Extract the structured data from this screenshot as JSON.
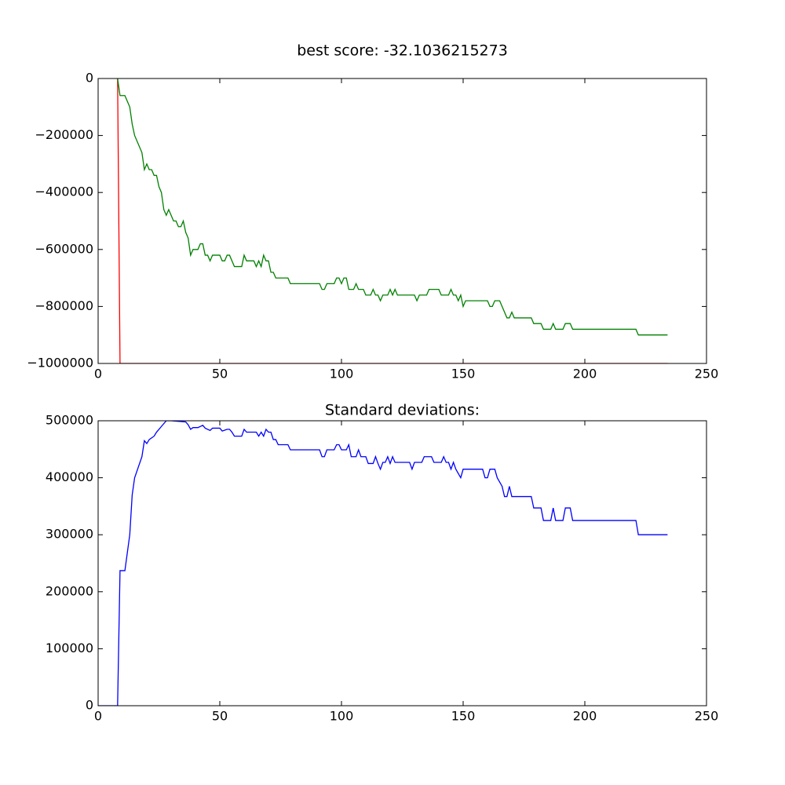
{
  "chart_data": [
    {
      "type": "line",
      "title": "best score: -32.1036215273",
      "xlim": [
        0,
        250
      ],
      "xticks": [
        0,
        50,
        100,
        150,
        200,
        250
      ],
      "ylim": [
        -1000000,
        0
      ],
      "yticks": [
        {
          "value": -1000000,
          "label": "−1000000"
        },
        {
          "value": -800000,
          "label": "−800000"
        },
        {
          "value": -600000,
          "label": "−600000"
        },
        {
          "value": -400000,
          "label": "−400000"
        },
        {
          "value": -200000,
          "label": "−200000"
        },
        0
      ],
      "series": [
        {
          "color": "#ff0000",
          "x": [
            8,
            9,
            234
          ],
          "values": [
            0,
            -1000000,
            -1000000
          ]
        },
        {
          "color": "#008000",
          "x": [
            8,
            9,
            11,
            13,
            14,
            15,
            18,
            19,
            20,
            21,
            22,
            23,
            24,
            25,
            26,
            27,
            28,
            29,
            30,
            31,
            32,
            33,
            34,
            35,
            36,
            37,
            38,
            39,
            41,
            42,
            43,
            44,
            45,
            46,
            47,
            50,
            51,
            52,
            53,
            54,
            56,
            59,
            60,
            61,
            64,
            65,
            66,
            67,
            68,
            69,
            70,
            71,
            72,
            73,
            78,
            79,
            91,
            92,
            93,
            94,
            97,
            98,
            99,
            100,
            101,
            102,
            103,
            105,
            106,
            107,
            109,
            110,
            112,
            113,
            114,
            115,
            116,
            117,
            119,
            120,
            121,
            122,
            123,
            130,
            131,
            132,
            135,
            136,
            140,
            141,
            144,
            145,
            146,
            147,
            148,
            149,
            150,
            151,
            160,
            161,
            162,
            163,
            165,
            166,
            168,
            169,
            170,
            171,
            178,
            179,
            182,
            183,
            186,
            187,
            188,
            191,
            192,
            194,
            195,
            221,
            222,
            234
          ],
          "values": [
            0,
            -60000,
            -60000,
            -100000,
            -160000,
            -200000,
            -260000,
            -320000,
            -300000,
            -320000,
            -320000,
            -340000,
            -340000,
            -380000,
            -400000,
            -460000,
            -480000,
            -460000,
            -480000,
            -500000,
            -500000,
            -520000,
            -520000,
            -500000,
            -540000,
            -560000,
            -620000,
            -600000,
            -600000,
            -580000,
            -580000,
            -620000,
            -620000,
            -640000,
            -620000,
            -620000,
            -640000,
            -640000,
            -620000,
            -620000,
            -660000,
            -660000,
            -620000,
            -640000,
            -640000,
            -660000,
            -640000,
            -660000,
            -620000,
            -640000,
            -640000,
            -680000,
            -680000,
            -700000,
            -700000,
            -720000,
            -720000,
            -740000,
            -740000,
            -720000,
            -720000,
            -700000,
            -700000,
            -720000,
            -700000,
            -700000,
            -740000,
            -740000,
            -720000,
            -740000,
            -740000,
            -760000,
            -760000,
            -740000,
            -760000,
            -760000,
            -780000,
            -760000,
            -760000,
            -740000,
            -760000,
            -740000,
            -760000,
            -760000,
            -780000,
            -760000,
            -760000,
            -740000,
            -740000,
            -760000,
            -760000,
            -740000,
            -760000,
            -760000,
            -780000,
            -760000,
            -800000,
            -780000,
            -780000,
            -800000,
            -800000,
            -780000,
            -780000,
            -800000,
            -840000,
            -840000,
            -820000,
            -840000,
            -840000,
            -860000,
            -860000,
            -880000,
            -880000,
            -860000,
            -880000,
            -880000,
            -860000,
            -860000,
            -880000,
            -880000,
            -900000,
            -900000
          ]
        }
      ]
    },
    {
      "type": "line",
      "title": "Standard deviations:",
      "xlim": [
        0,
        250
      ],
      "xticks": [
        0,
        50,
        100,
        150,
        200,
        250
      ],
      "ylim": [
        0,
        500000
      ],
      "yticks": [
        0,
        100000,
        200000,
        300000,
        400000,
        500000
      ],
      "series": [
        {
          "color": "#0000ff",
          "x": [
            0,
            8,
            9,
            11,
            13,
            14,
            15,
            18,
            19,
            20,
            21,
            23,
            24,
            26,
            28,
            30,
            36,
            37,
            38,
            39,
            41,
            43,
            44,
            46,
            47,
            50,
            51,
            53,
            54,
            55,
            56,
            59,
            60,
            61,
            65,
            66,
            67,
            68,
            69,
            70,
            71,
            72,
            73,
            74,
            78,
            79,
            91,
            92,
            93,
            94,
            97,
            98,
            99,
            100,
            102,
            103,
            104,
            106,
            107,
            108,
            110,
            111,
            113,
            114,
            115,
            116,
            117,
            118,
            119,
            120,
            121,
            122,
            128,
            129,
            130,
            133,
            134,
            137,
            138,
            141,
            142,
            143,
            144,
            145,
            146,
            147,
            149,
            150,
            158,
            159,
            160,
            161,
            163,
            164,
            166,
            167,
            168,
            169,
            170,
            178,
            179,
            182,
            183,
            186,
            187,
            188,
            191,
            192,
            194,
            195,
            221,
            222,
            234
          ],
          "values": [
            0,
            0,
            237000,
            237000,
            300000,
            370000,
            400000,
            437000,
            465000,
            460000,
            467000,
            473000,
            480000,
            490000,
            500000,
            500000,
            498000,
            493000,
            485000,
            488000,
            488000,
            492000,
            487000,
            483000,
            487000,
            487000,
            482000,
            485000,
            485000,
            480000,
            473000,
            473000,
            485000,
            480000,
            480000,
            473000,
            480000,
            473000,
            485000,
            480000,
            480000,
            467000,
            467000,
            458000,
            458000,
            449000,
            449000,
            437000,
            437000,
            449000,
            449000,
            458000,
            458000,
            449000,
            449000,
            458000,
            437000,
            437000,
            449000,
            437000,
            437000,
            425000,
            425000,
            437000,
            425000,
            415000,
            427000,
            427000,
            437000,
            425000,
            437000,
            427000,
            427000,
            415000,
            427000,
            427000,
            437000,
            437000,
            427000,
            427000,
            437000,
            427000,
            427000,
            415000,
            427000,
            415000,
            400000,
            415000,
            415000,
            400000,
            400000,
            415000,
            415000,
            400000,
            385000,
            367000,
            367000,
            385000,
            367000,
            367000,
            347000,
            347000,
            325000,
            325000,
            347000,
            325000,
            325000,
            347000,
            347000,
            325000,
            325000,
            300000,
            300000
          ]
        }
      ]
    }
  ]
}
